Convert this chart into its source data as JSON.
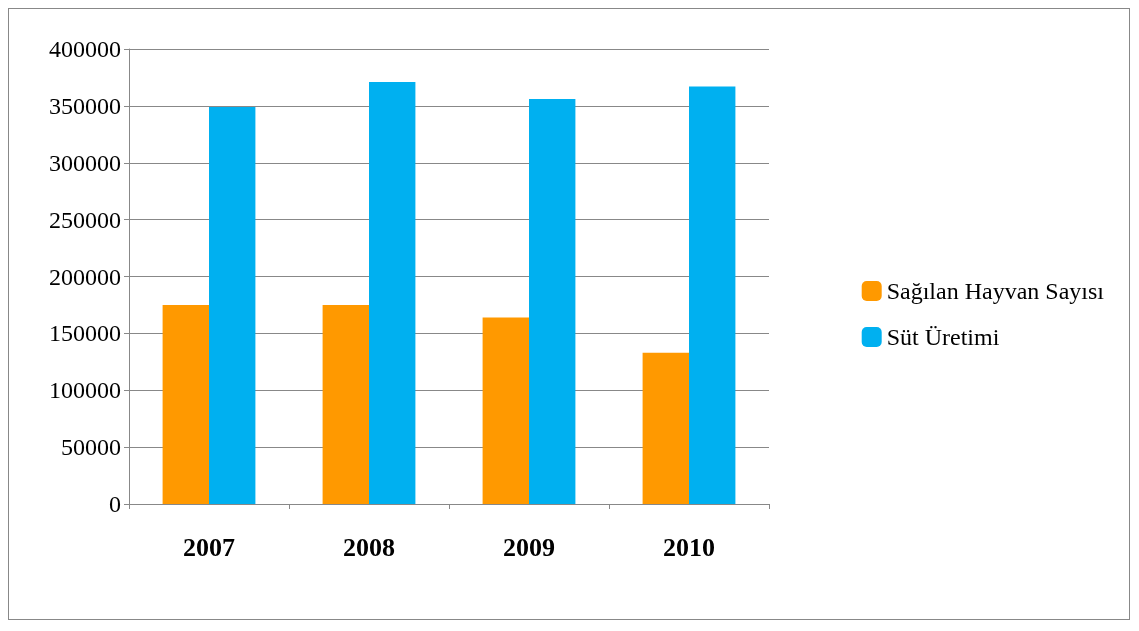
{
  "chart_data": {
    "type": "bar",
    "categories": [
      "2007",
      "2008",
      "2009",
      "2010"
    ],
    "series": [
      {
        "name": "Sağılan Hayvan Sayısı",
        "color": "#ff9900",
        "values": [
          175000,
          175000,
          164000,
          133000
        ]
      },
      {
        "name": "Süt Üretimi",
        "color": "#00b0f0",
        "values": [
          349000,
          371000,
          356000,
          367000
        ]
      }
    ],
    "ylim": [
      0,
      400000
    ],
    "yticks": [
      0,
      50000,
      100000,
      150000,
      200000,
      250000,
      300000,
      350000,
      400000
    ],
    "grid": "y",
    "legend": "right"
  }
}
